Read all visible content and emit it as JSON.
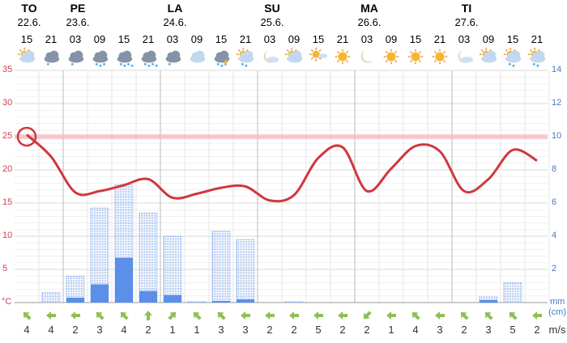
{
  "days": [
    {
      "name": "TO",
      "date": "22.6.",
      "col": 0
    },
    {
      "name": "PE",
      "date": "23.6.",
      "col": 2
    },
    {
      "name": "LA",
      "date": "24.6.",
      "col": 6
    },
    {
      "name": "SU",
      "date": "25.6.",
      "col": 10
    },
    {
      "name": "MA",
      "date": "26.6.",
      "col": 14
    },
    {
      "name": "TI",
      "date": "27.6.",
      "col": 18
    }
  ],
  "hours": [
    "15",
    "21",
    "03",
    "09",
    "15",
    "21",
    "03",
    "09",
    "15",
    "21",
    "03",
    "09",
    "15",
    "21",
    "03",
    "09",
    "15",
    "21",
    "03",
    "09",
    "15",
    "21"
  ],
  "icons": [
    "sun-cloud",
    "cloud-light-rain",
    "cloud-light-rain",
    "cloud-rain",
    "cloud-heavy-rain",
    "cloud-heavy-rain",
    "cloud-light-rain",
    "cloud",
    "cloud-thunder-rain",
    "sun-cloud-rain",
    "moon-cloud",
    "sun-cloud",
    "sun-small-cloud",
    "sun",
    "moon",
    "sun",
    "sun",
    "sun",
    "moon-cloud",
    "sun-cloud",
    "sun-cloud-rain",
    "sun-cloud-rain"
  ],
  "left_axis": {
    "ticks": [
      "35",
      "30",
      "25",
      "20",
      "15",
      "10",
      "5"
    ],
    "unit": "°C"
  },
  "right_axis": {
    "ticks": [
      "14",
      "12",
      "10",
      "8",
      "6",
      "4",
      "2"
    ],
    "unit1": "mm",
    "unit2": "(cm)"
  },
  "wind": {
    "unit": "m/s",
    "speeds": [
      "4",
      "4",
      "2",
      "3",
      "4",
      "2",
      "1",
      "1",
      "3",
      "3",
      "2",
      "2",
      "5",
      "2",
      "2",
      "1",
      "4",
      "3",
      "2",
      "3",
      "5",
      "2"
    ],
    "dirs": [
      "NW",
      "W",
      "W",
      "NW",
      "NW",
      "N",
      "NE",
      "NW",
      "NW",
      "W",
      "W",
      "W",
      "W",
      "W",
      "SW",
      "W",
      "NW",
      "W",
      "NW",
      "NW",
      "NW",
      "W"
    ]
  },
  "colors": {
    "temp": "#d0373e",
    "precip": "#5b8fe8",
    "ref": "#f2b8bd"
  },
  "chart_data": {
    "type": "line",
    "temperature_c": [
      25.3,
      22,
      16.6,
      16.8,
      17.7,
      18.6,
      15.8,
      16.4,
      17.3,
      17.5,
      15.4,
      16.2,
      21.8,
      23.4,
      16.8,
      20.2,
      23.6,
      22.8,
      16.8,
      18.6,
      23,
      21.4
    ],
    "reference_c": 25,
    "ylim": [
      0,
      35
    ],
    "precip_max_mm": [
      null,
      0.6,
      1.6,
      5.7,
      7.1,
      5.4,
      4.0,
      0.05,
      4.3,
      3.8,
      0,
      0.05,
      0,
      0,
      0,
      0,
      0,
      0,
      0,
      0.35,
      1.2,
      null
    ],
    "precip_mm": [
      null,
      0,
      0.3,
      1.1,
      2.7,
      0.7,
      0.45,
      0,
      0.1,
      0.2,
      0,
      0,
      0,
      0,
      0,
      0,
      0,
      0,
      0,
      0.15,
      0,
      null
    ],
    "precip_ylim": [
      0,
      14
    ]
  }
}
